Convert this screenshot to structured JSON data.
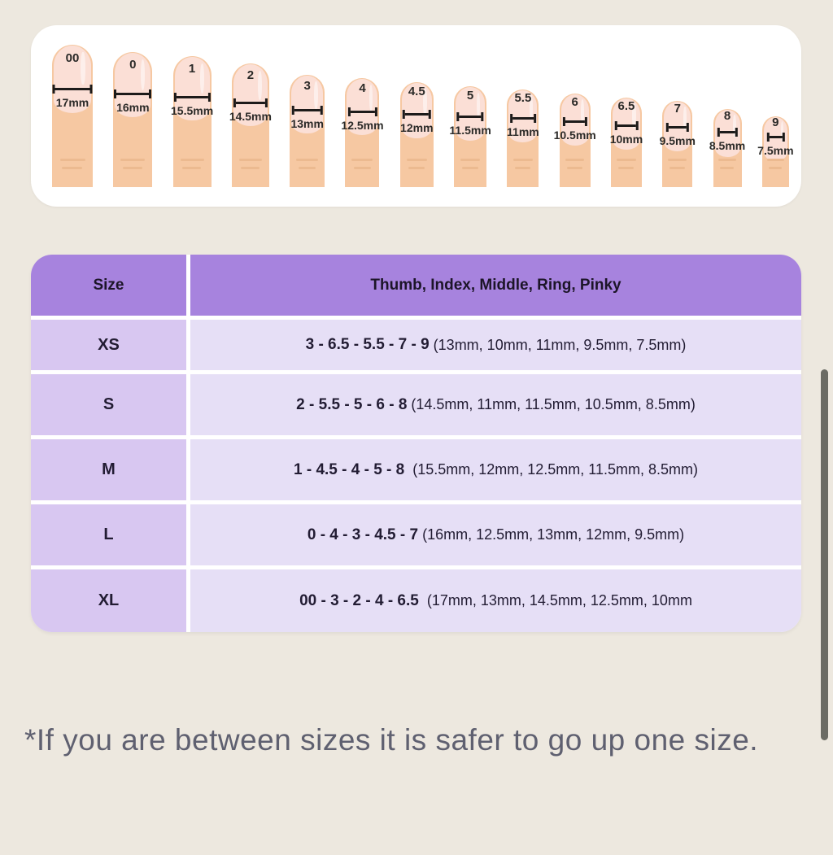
{
  "finger_chart": {
    "sizes": [
      {
        "label": "00",
        "mm": "17mm",
        "mm_value": 17
      },
      {
        "label": "0",
        "mm": "16mm",
        "mm_value": 16
      },
      {
        "label": "1",
        "mm": "15.5mm",
        "mm_value": 15.5
      },
      {
        "label": "2",
        "mm": "14.5mm",
        "mm_value": 14.5
      },
      {
        "label": "3",
        "mm": "13mm",
        "mm_value": 13
      },
      {
        "label": "4",
        "mm": "12.5mm",
        "mm_value": 12.5
      },
      {
        "label": "4.5",
        "mm": "12mm",
        "mm_value": 12
      },
      {
        "label": "5",
        "mm": "11.5mm",
        "mm_value": 11.5
      },
      {
        "label": "5.5",
        "mm": "11mm",
        "mm_value": 11
      },
      {
        "label": "6",
        "mm": "10.5mm",
        "mm_value": 10.5
      },
      {
        "label": "6.5",
        "mm": "10mm",
        "mm_value": 10
      },
      {
        "label": "7",
        "mm": "9.5mm",
        "mm_value": 9.5
      },
      {
        "label": "8",
        "mm": "8.5mm",
        "mm_value": 8.5
      },
      {
        "label": "9",
        "mm": "7.5mm",
        "mm_value": 7.5
      }
    ]
  },
  "size_table": {
    "headers": [
      "Size",
      "Thumb, Index, Middle, Ring, Pinky"
    ],
    "rows": [
      {
        "size": "XS",
        "combo": "3 - 6.5 - 5.5 - 7 - 9",
        "detail": " (13mm, 10mm, 11mm, 9.5mm, 7.5mm)"
      },
      {
        "size": "S",
        "combo": "2 - 5.5 - 5 - 6 - 8",
        "detail": " (14.5mm, 11mm, 11.5mm, 10.5mm, 8.5mm)"
      },
      {
        "size": "M",
        "combo": "1 - 4.5 - 4 - 5 - 8",
        "detail": "  (15.5mm, 12mm, 12.5mm, 11.5mm, 8.5mm)"
      },
      {
        "size": "L",
        "combo": "0 - 4 - 3 - 4.5 - 7",
        "detail": " (16mm, 12.5mm, 13mm, 12mm, 9.5mm)"
      },
      {
        "size": "XL",
        "combo": "00 - 3 - 2 - 4 - 6.5",
        "detail": "  (17mm, 13mm, 14.5mm, 12.5mm, 10mm"
      }
    ]
  },
  "note": "*If you are between sizes it is safer to go up one size.",
  "colors": {
    "page_background": "#EDE8DF",
    "card_background": "#FFFFFF",
    "table_header": "#A783DE",
    "table_size_cell": "#D8C7F1",
    "table_value_cell": "#E6DFF6",
    "finger_skin": "#F6C8A2",
    "nail": "#FBDFD6",
    "crease": "#ECBA90",
    "ruler": "#1D1B1A",
    "table_text": "#221C33",
    "note_text": "#5F6070",
    "scrollbar": "#6B6B64"
  }
}
